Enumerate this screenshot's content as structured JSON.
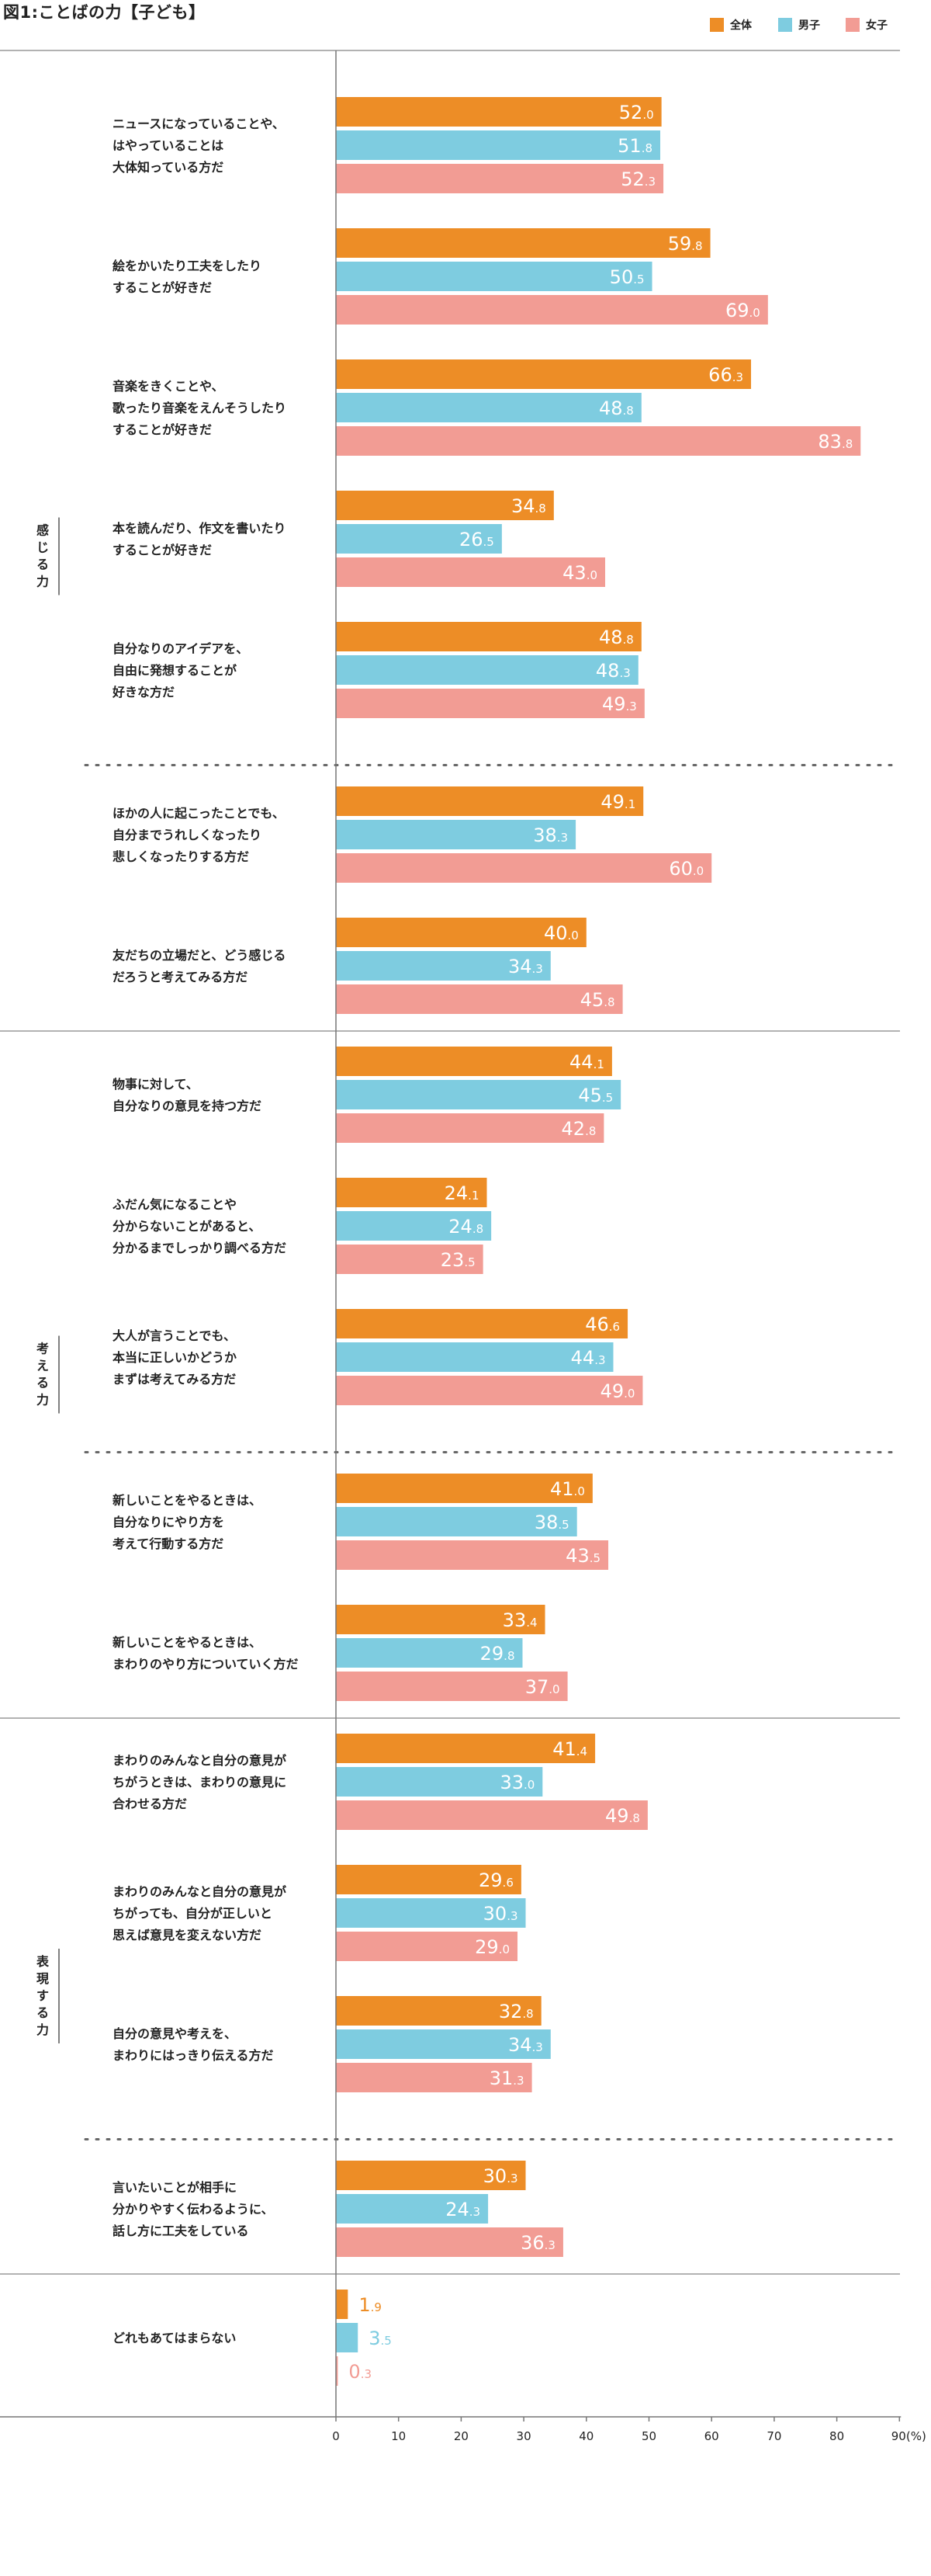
{
  "title": "図1:ことばの力【子ども】",
  "legend": [
    {
      "name": "全体",
      "color": "#ED8D26"
    },
    {
      "name": "男子",
      "color": "#7ECCE0"
    },
    {
      "name": "女子",
      "color": "#F29C94"
    }
  ],
  "chart_data": {
    "type": "bar",
    "orientation": "horizontal",
    "xlim": [
      0,
      90
    ],
    "xticks": [
      "0",
      "10",
      "20",
      "30",
      "40",
      "50",
      "60",
      "70",
      "80",
      "90(%)"
    ],
    "series": [
      {
        "name": "全体",
        "color": "#ED8D26"
      },
      {
        "name": "男子",
        "color": "#7ECCE0"
      },
      {
        "name": "女子",
        "color": "#F29C94"
      }
    ],
    "groups": [
      {
        "label": "感じる力",
        "subgroups": [
          [
            {
              "lines": [
                "ニュースになっていることや、",
                "はやっていることは",
                "大体知っている方だ"
              ],
              "values": [
                52.0,
                51.8,
                52.3
              ]
            },
            {
              "lines": [
                "絵をかいたり工夫をしたり",
                "することが好きだ"
              ],
              "values": [
                59.8,
                50.5,
                69.0
              ]
            },
            {
              "lines": [
                "音楽をきくことや、",
                "歌ったり音楽をえんそうしたり",
                "することが好きだ"
              ],
              "values": [
                66.3,
                48.8,
                83.8
              ]
            },
            {
              "lines": [
                "本を読んだり、作文を書いたり",
                "することが好きだ"
              ],
              "values": [
                34.8,
                26.5,
                43.0
              ]
            },
            {
              "lines": [
                "自分なりのアイデアを、",
                "自由に発想することが",
                "好きな方だ"
              ],
              "values": [
                48.8,
                48.3,
                49.3
              ]
            }
          ],
          [
            {
              "lines": [
                "ほかの人に起こったことでも、",
                "自分までうれしくなったり",
                "悲しくなったりする方だ"
              ],
              "values": [
                49.1,
                38.3,
                60.0
              ]
            },
            {
              "lines": [
                "友だちの立場だと、どう感じる",
                "だろうと考えてみる方だ"
              ],
              "values": [
                40.0,
                34.3,
                45.8
              ]
            }
          ]
        ]
      },
      {
        "label": "考える力",
        "subgroups": [
          [
            {
              "lines": [
                "物事に対して、",
                "自分なりの意見を持つ方だ"
              ],
              "values": [
                44.1,
                45.5,
                42.8
              ]
            },
            {
              "lines": [
                "ふだん気になることや",
                "分からないことがあると、",
                "分かるまでしっかり調べる方だ"
              ],
              "values": [
                24.1,
                24.8,
                23.5
              ]
            },
            {
              "lines": [
                "大人が言うことでも、",
                "本当に正しいかどうか",
                "まずは考えてみる方だ"
              ],
              "values": [
                46.6,
                44.3,
                49.0
              ]
            }
          ],
          [
            {
              "lines": [
                "新しいことをやるときは、",
                "自分なりにやり方を",
                "考えて行動する方だ"
              ],
              "values": [
                41.0,
                38.5,
                43.5
              ]
            },
            {
              "lines": [
                "新しいことをやるときは、",
                "まわりのやり方についていく方だ"
              ],
              "values": [
                33.4,
                29.8,
                37.0
              ]
            }
          ]
        ]
      },
      {
        "label": "表現する力",
        "subgroups": [
          [
            {
              "lines": [
                "まわりのみんなと自分の意見が",
                "ちがうときは、まわりの意見に",
                "合わせる方だ"
              ],
              "values": [
                41.4,
                33.0,
                49.8
              ]
            },
            {
              "lines": [
                "まわりのみんなと自分の意見が",
                "ちがっても、自分が正しいと",
                "思えば意見を変えない方だ"
              ],
              "values": [
                29.6,
                30.3,
                29.0
              ]
            },
            {
              "lines": [
                "自分の意見や考えを、",
                "まわりにはっきり伝える方だ"
              ],
              "values": [
                32.8,
                34.3,
                31.3
              ]
            }
          ],
          [
            {
              "lines": [
                "言いたいことが相手に",
                "分かりやすく伝わるように、",
                "話し方に工夫をしている"
              ],
              "values": [
                30.3,
                24.3,
                36.3
              ]
            }
          ]
        ]
      },
      {
        "label": "",
        "subgroups": [
          [
            {
              "lines": [
                "どれもあてはまらない"
              ],
              "values": [
                1.9,
                3.5,
                0.3
              ]
            }
          ]
        ]
      }
    ]
  }
}
